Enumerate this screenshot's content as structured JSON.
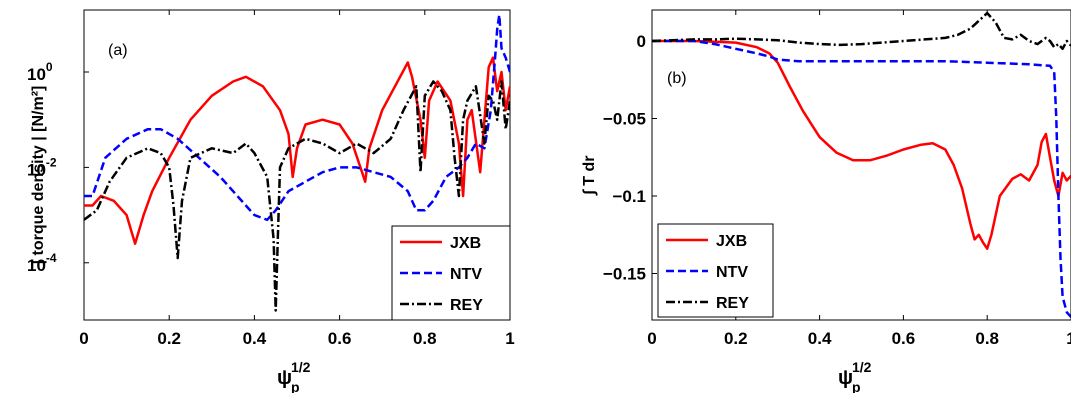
{
  "chart_data": [
    {
      "type": "line",
      "panel": "(a)",
      "xlabel": "ψ",
      "xlabel_sub": "p",
      "xlabel_sup": "1/2",
      "ylabel": "| torque density | [N/m²]",
      "xlim": [
        0,
        1
      ],
      "ylim_log10": [
        -5.2,
        1.3
      ],
      "yscale": "log",
      "xticks": [
        "0",
        "0.2",
        "0.4",
        "0.6",
        "0.8",
        "1"
      ],
      "xtick_values": [
        0,
        0.2,
        0.4,
        0.6,
        0.8,
        1
      ],
      "yticks": [
        {
          "base": "10",
          "exp": "0",
          "value": 0
        },
        {
          "base": "10",
          "exp": "-2",
          "value": -2
        },
        {
          "base": "10",
          "exp": "-4",
          "value": -4
        }
      ],
      "legend_position": "bottom-right",
      "series": [
        {
          "name": "JXB",
          "color": "#ff0000",
          "dash": "solid",
          "x": [
            0,
            0.02,
            0.04,
            0.07,
            0.1,
            0.12,
            0.14,
            0.16,
            0.2,
            0.25,
            0.3,
            0.35,
            0.38,
            0.42,
            0.46,
            0.48,
            0.49,
            0.5,
            0.52,
            0.56,
            0.6,
            0.63,
            0.66,
            0.67,
            0.7,
            0.73,
            0.76,
            0.77,
            0.79,
            0.8,
            0.81,
            0.83,
            0.86,
            0.88,
            0.89,
            0.9,
            0.91,
            0.93,
            0.95,
            0.96,
            0.97,
            0.98,
            0.99,
            1.0
          ],
          "y": [
            -2.8,
            -2.8,
            -2.6,
            -2.7,
            -3.0,
            -3.6,
            -3.0,
            -2.5,
            -1.8,
            -1.0,
            -0.5,
            -0.2,
            -0.1,
            -0.3,
            -0.8,
            -1.3,
            -2.2,
            -1.6,
            -1.1,
            -1.0,
            -1.1,
            -1.5,
            -2.3,
            -1.6,
            -0.8,
            -0.3,
            0.2,
            -0.1,
            -1.0,
            -1.8,
            -0.6,
            -0.2,
            -0.6,
            -1.5,
            -2.6,
            -1.0,
            -0.8,
            -2.1,
            0.1,
            0.3,
            -0.4,
            0.0,
            -0.8,
            -0.3
          ]
        },
        {
          "name": "NTV",
          "color": "#0000ff",
          "dash": "dashed",
          "x": [
            0,
            0.02,
            0.05,
            0.1,
            0.15,
            0.18,
            0.22,
            0.27,
            0.32,
            0.36,
            0.4,
            0.43,
            0.45,
            0.48,
            0.52,
            0.56,
            0.6,
            0.64,
            0.68,
            0.72,
            0.76,
            0.78,
            0.8,
            0.82,
            0.85,
            0.88,
            0.9,
            0.92,
            0.94,
            0.955,
            0.965,
            0.97,
            0.975,
            0.98,
            0.99,
            1.0
          ],
          "y": [
            -2.6,
            -2.6,
            -1.8,
            -1.4,
            -1.2,
            -1.2,
            -1.4,
            -1.8,
            -2.2,
            -2.6,
            -3.0,
            -3.1,
            -2.9,
            -2.5,
            -2.3,
            -2.1,
            -2.0,
            -2.0,
            -2.1,
            -2.2,
            -2.5,
            -2.9,
            -2.9,
            -2.7,
            -2.2,
            -2.0,
            -1.8,
            -1.5,
            -1.6,
            -0.8,
            0.3,
            0.9,
            1.2,
            0.5,
            0.3,
            0.0
          ]
        },
        {
          "name": "REY",
          "color": "#000000",
          "dash": "dashdot",
          "x": [
            0,
            0.03,
            0.06,
            0.1,
            0.15,
            0.18,
            0.2,
            0.21,
            0.22,
            0.23,
            0.25,
            0.3,
            0.35,
            0.38,
            0.4,
            0.43,
            0.445,
            0.45,
            0.455,
            0.46,
            0.48,
            0.52,
            0.56,
            0.6,
            0.64,
            0.68,
            0.72,
            0.75,
            0.78,
            0.79,
            0.8,
            0.82,
            0.84,
            0.86,
            0.87,
            0.88,
            0.89,
            0.9,
            0.92,
            0.94,
            0.95,
            0.96,
            0.97,
            0.98,
            0.99,
            1.0
          ],
          "y": [
            -3.1,
            -2.9,
            -2.3,
            -1.8,
            -1.6,
            -1.7,
            -2.0,
            -2.8,
            -3.9,
            -2.7,
            -1.8,
            -1.6,
            -1.7,
            -1.5,
            -1.7,
            -2.2,
            -3.5,
            -5.0,
            -3.5,
            -2.0,
            -1.6,
            -1.4,
            -1.5,
            -1.7,
            -1.5,
            -1.7,
            -1.4,
            -0.8,
            -0.3,
            -2.1,
            -0.5,
            -0.2,
            -0.4,
            -0.8,
            -1.8,
            -2.6,
            -1.0,
            -0.6,
            -0.3,
            -1.5,
            -0.5,
            -0.6,
            -1.0,
            -0.2,
            -1.2,
            -0.6
          ]
        }
      ]
    },
    {
      "type": "line",
      "panel": "(b)",
      "xlabel": "ψ",
      "xlabel_sub": "p",
      "xlabel_sup": "1/2",
      "ylabel": "∫ T dr",
      "xlim": [
        0,
        1
      ],
      "ylim": [
        -0.18,
        0.02
      ],
      "xticks": [
        "0",
        "0.2",
        "0.4",
        "0.6",
        "0.8",
        "1"
      ],
      "xtick_values": [
        0,
        0.2,
        0.4,
        0.6,
        0.8,
        1
      ],
      "yticks": [
        "0",
        "-0.05",
        "-0.1",
        "-0.15"
      ],
      "ytick_values": [
        0,
        -0.05,
        -0.1,
        -0.15
      ],
      "legend_position": "bottom-left",
      "series": [
        {
          "name": "JXB",
          "color": "#ff0000",
          "dash": "solid",
          "x": [
            0,
            0.05,
            0.1,
            0.15,
            0.2,
            0.25,
            0.28,
            0.3,
            0.33,
            0.36,
            0.4,
            0.44,
            0.48,
            0.52,
            0.56,
            0.6,
            0.64,
            0.67,
            0.7,
            0.72,
            0.74,
            0.76,
            0.77,
            0.78,
            0.79,
            0.8,
            0.81,
            0.83,
            0.86,
            0.88,
            0.9,
            0.92,
            0.93,
            0.94,
            0.95,
            0.96,
            0.97,
            0.98,
            0.99,
            1.0
          ],
          "y": [
            0,
            0,
            0,
            -0.0005,
            -0.001,
            -0.004,
            -0.008,
            -0.014,
            -0.03,
            -0.045,
            -0.062,
            -0.072,
            -0.077,
            -0.077,
            -0.074,
            -0.07,
            -0.067,
            -0.066,
            -0.07,
            -0.08,
            -0.095,
            -0.118,
            -0.128,
            -0.125,
            -0.13,
            -0.134,
            -0.125,
            -0.1,
            -0.089,
            -0.086,
            -0.09,
            -0.08,
            -0.065,
            -0.06,
            -0.075,
            -0.09,
            -0.1,
            -0.085,
            -0.09,
            -0.087
          ]
        },
        {
          "name": "NTV",
          "color": "#0000ff",
          "dash": "dashed",
          "x": [
            0,
            0.05,
            0.1,
            0.15,
            0.2,
            0.25,
            0.28,
            0.3,
            0.35,
            0.4,
            0.5,
            0.6,
            0.7,
            0.8,
            0.9,
            0.95,
            0.96,
            0.965,
            0.97,
            0.975,
            0.98,
            0.99,
            1.0
          ],
          "y": [
            0,
            0,
            0,
            -0.002,
            -0.005,
            -0.008,
            -0.01,
            -0.012,
            -0.013,
            -0.013,
            -0.013,
            -0.013,
            -0.013,
            -0.014,
            -0.015,
            -0.016,
            -0.02,
            -0.05,
            -0.1,
            -0.14,
            -0.165,
            -0.175,
            -0.178
          ]
        },
        {
          "name": "REY",
          "color": "#000000",
          "dash": "dashdot",
          "x": [
            0,
            0.05,
            0.1,
            0.15,
            0.2,
            0.25,
            0.3,
            0.35,
            0.4,
            0.45,
            0.5,
            0.55,
            0.6,
            0.65,
            0.7,
            0.73,
            0.76,
            0.78,
            0.8,
            0.82,
            0.84,
            0.86,
            0.88,
            0.9,
            0.92,
            0.94,
            0.95,
            0.96,
            0.97,
            0.98,
            0.99,
            1.0
          ],
          "y": [
            0,
            0.0005,
            0.001,
            0.001,
            0.0015,
            0.001,
            0.0005,
            -0.001,
            -0.002,
            -0.0025,
            -0.002,
            -0.001,
            0,
            0.001,
            0.002,
            0.004,
            0.008,
            0.013,
            0.018,
            0.012,
            0.002,
            0.001,
            0.004,
            0.0,
            -0.002,
            0.002,
            0.0,
            -0.004,
            -0.002,
            -0.005,
            0.0,
            -0.003
          ]
        }
      ]
    }
  ]
}
